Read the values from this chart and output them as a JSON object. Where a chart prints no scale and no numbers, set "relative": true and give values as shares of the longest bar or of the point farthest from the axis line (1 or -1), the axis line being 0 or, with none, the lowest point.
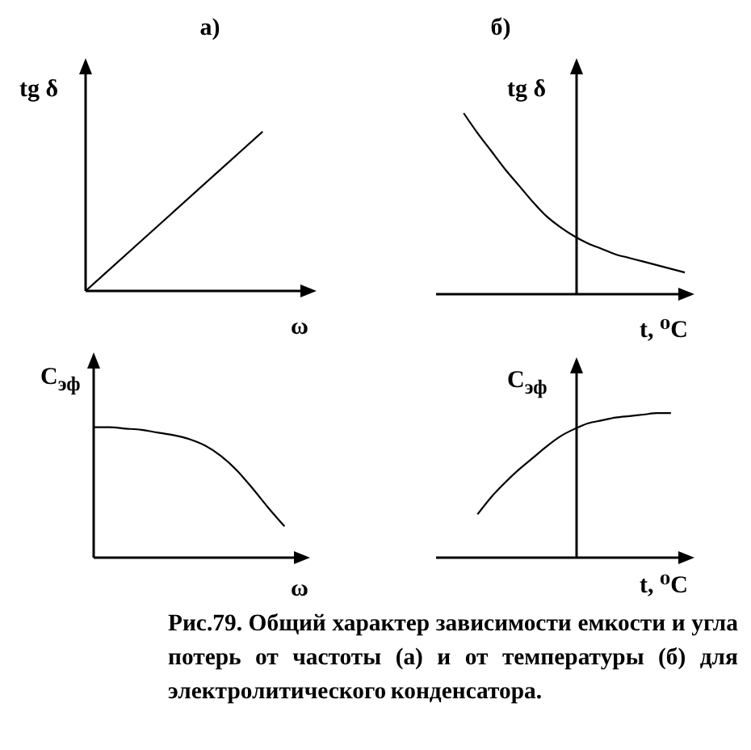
{
  "chart_data": [
    {
      "type": "line",
      "title": "а)",
      "xlabel": "ω",
      "ylabel": "tg δ",
      "categories": [
        null,
        null,
        null,
        null,
        null,
        null
      ],
      "values": [
        0,
        0.25,
        0.5,
        0.75,
        1,
        null
      ],
      "color": "#000000",
      "relative": true
    },
    {
      "type": "line",
      "title": "б)",
      "xlabel": "t, ⁰C",
      "ylabel": "tg δ",
      "categories": [
        null,
        null,
        null,
        null,
        null,
        null,
        null,
        null,
        null,
        null,
        null,
        null,
        null,
        null,
        null,
        null,
        null,
        null,
        null
      ],
      "values": [
        null,
        null,
        1,
        0.89,
        0.79,
        0.69,
        0.6,
        0.51,
        0.43,
        0.37,
        0.32,
        0.28,
        0.25,
        0.22,
        0.2,
        0.18,
        0.16,
        0.14,
        0.12
      ],
      "color": "#000000",
      "relative": true
    },
    {
      "type": "line",
      "xlabel": "ω",
      "ylabel": "C$_{эф}$",
      "categories": [
        null,
        null,
        null,
        null,
        null,
        null,
        null,
        null,
        null,
        null,
        null,
        null,
        null,
        null
      ],
      "values": [
        1,
        1,
        0.99,
        0.98,
        0.96,
        0.94,
        0.91,
        0.86,
        0.78,
        0.67,
        0.53,
        0.38,
        0.24,
        null
      ],
      "color": "#000000",
      "relative": true
    },
    {
      "type": "line",
      "xlabel": "t, ⁰C",
      "ylabel": "C$_{эф}$",
      "categories": [
        null,
        null,
        null,
        null,
        null,
        null,
        null,
        null,
        null,
        null,
        null,
        null,
        null,
        null,
        null,
        null,
        null,
        null,
        null
      ],
      "values": [
        null,
        null,
        null,
        0.3,
        0.42,
        0.52,
        0.61,
        0.69,
        0.77,
        0.84,
        0.89,
        0.93,
        0.95,
        0.97,
        0.98,
        0.99,
        1,
        1,
        null
      ],
      "color": "#000000",
      "relative": true,
      "annotations": [
        "Рис.79. Общий характер зависимости емкости и угла потерь от частоты (а) и от температуры (б) для электролитического конденсатора."
      ]
    }
  ]
}
